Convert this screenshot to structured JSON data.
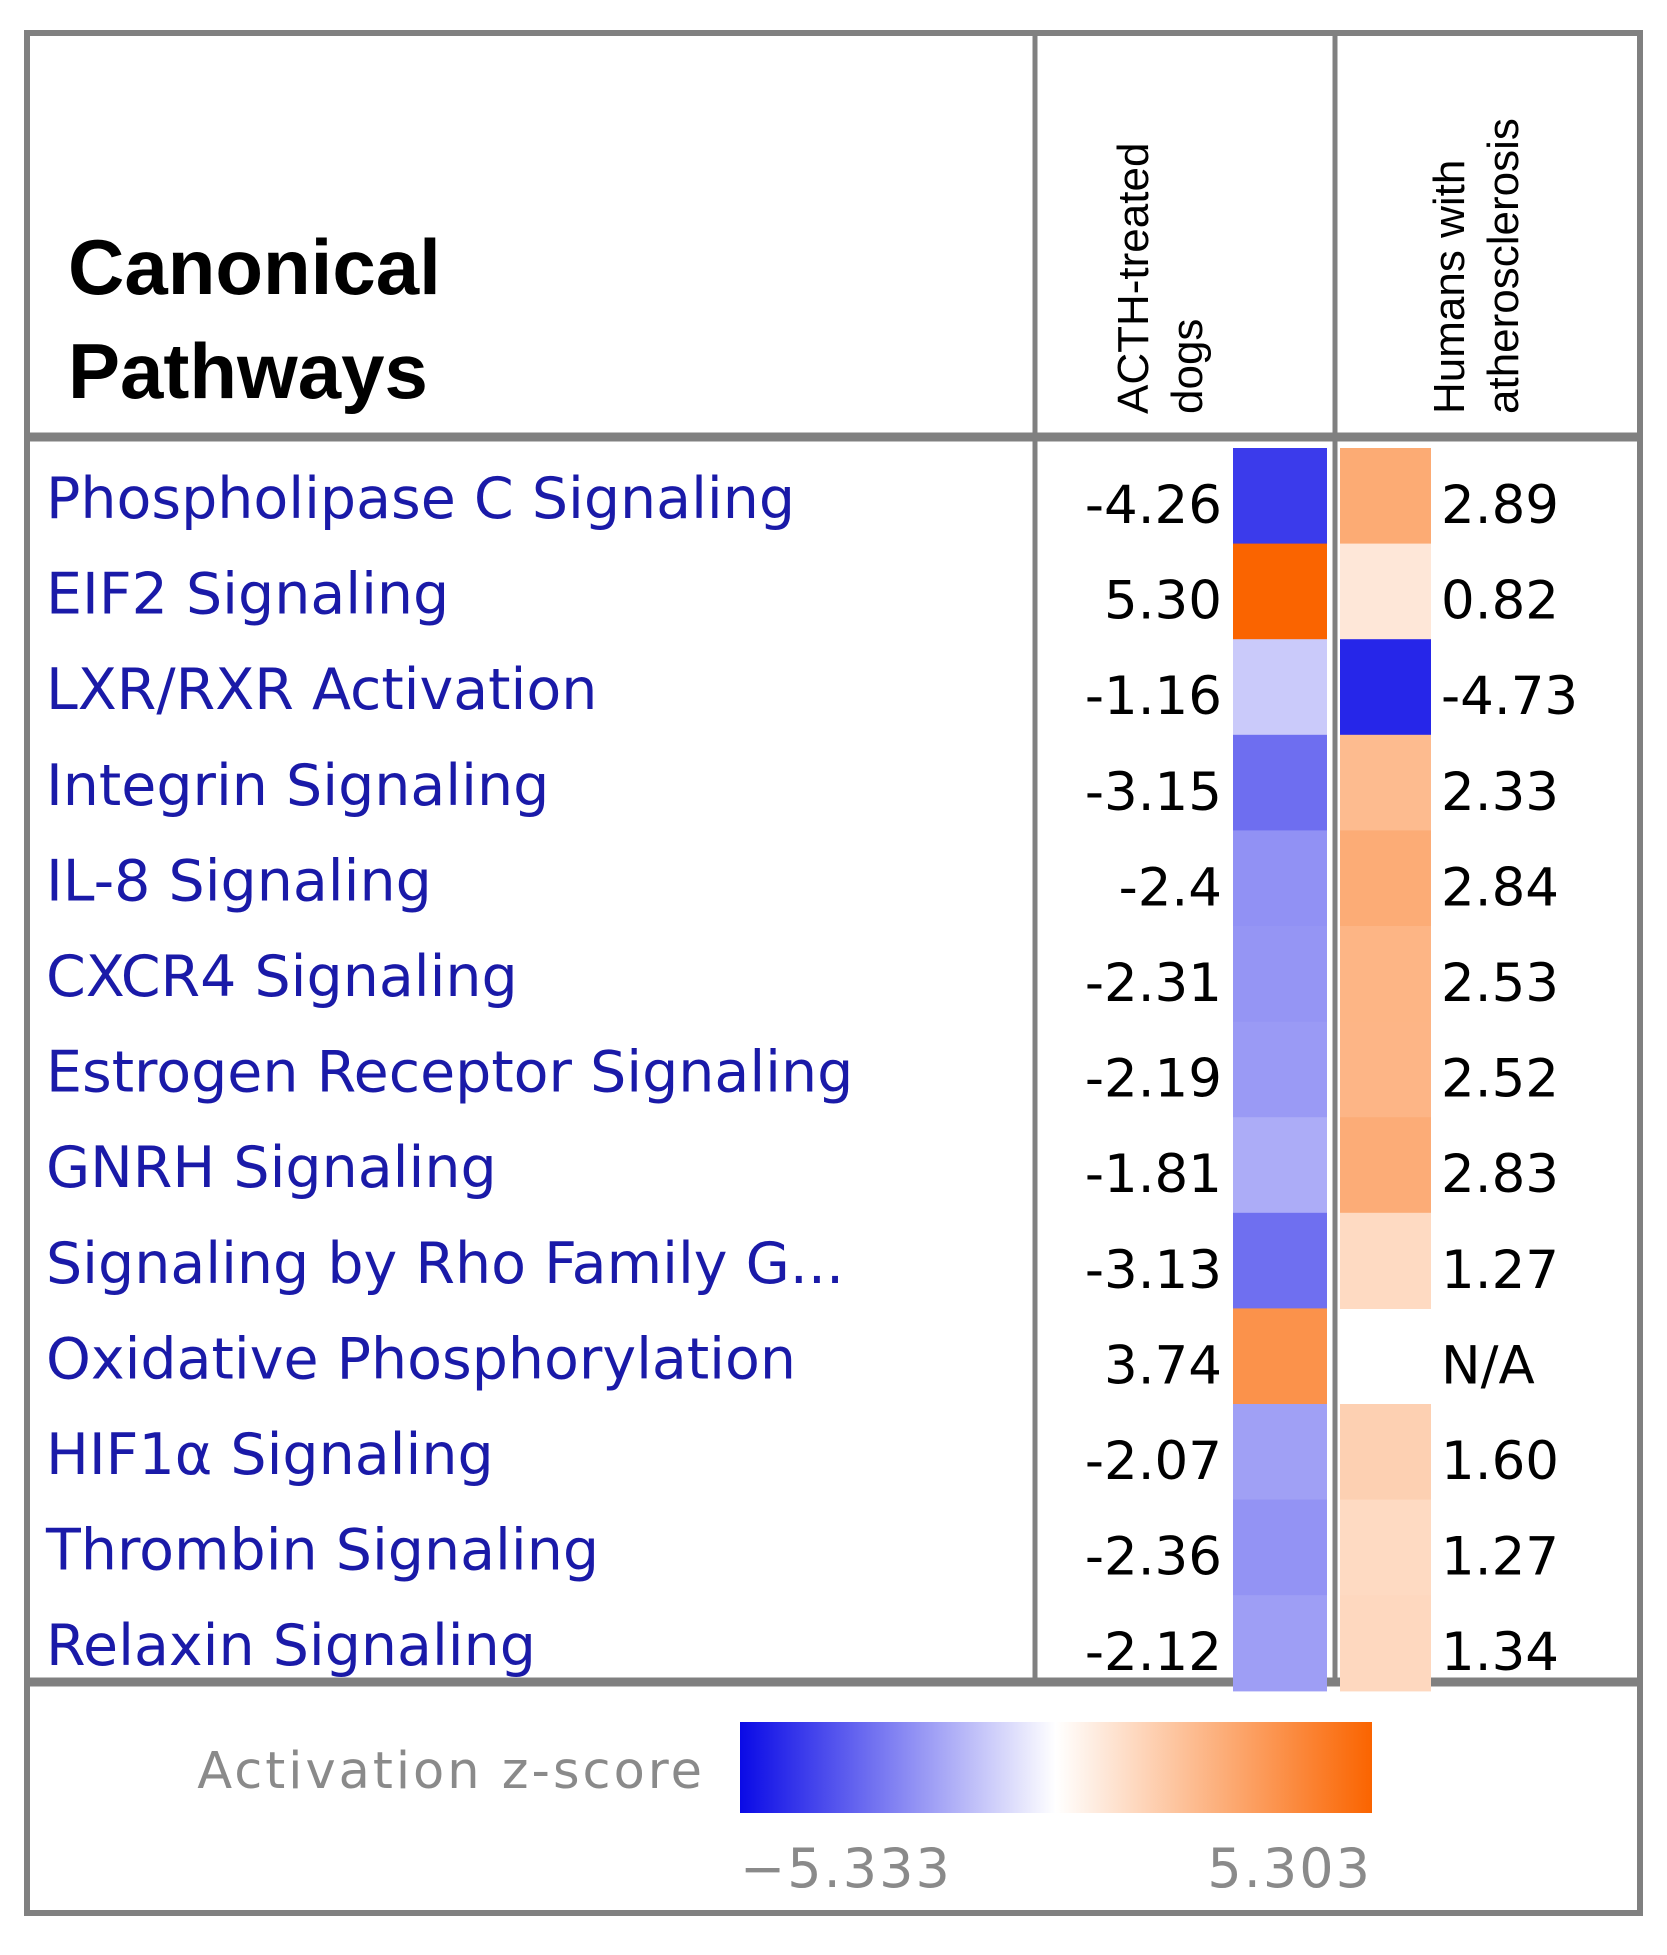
{
  "chart_data": {
    "type": "heatmap",
    "title": "Canonical Pathways",
    "title_lines": [
      "Canonical",
      "Pathways"
    ],
    "columns": [
      {
        "name": "ACTH-treated dogs",
        "lines": [
          "ACTH-treated",
          "dogs"
        ]
      },
      {
        "name": "Humans with atherosclerosis",
        "lines": [
          "Humans with",
          "atherosclerosis"
        ]
      }
    ],
    "rows": [
      "Phospholipase C Signaling",
      "EIF2 Signaling",
      "LXR/RXR Activation",
      "Integrin Signaling",
      "IL-8 Signaling",
      "CXCR4 Signaling",
      "Estrogen Receptor Signaling",
      "GNRH Signaling",
      "Signaling by Rho Family G...",
      "Oxidative Phosphorylation",
      "HIF1α Signaling",
      "Thrombin Signaling",
      "Relaxin Signaling"
    ],
    "values": [
      [
        -4.26,
        2.89
      ],
      [
        5.3,
        0.82
      ],
      [
        -1.16,
        -4.73
      ],
      [
        -3.15,
        2.33
      ],
      [
        -2.4,
        2.84
      ],
      [
        -2.31,
        2.53
      ],
      [
        -2.19,
        2.52
      ],
      [
        -1.81,
        2.83
      ],
      [
        -3.13,
        1.27
      ],
      [
        3.74,
        null
      ],
      [
        -2.07,
        1.6
      ],
      [
        -2.36,
        1.27
      ],
      [
        -2.12,
        1.34
      ]
    ],
    "value_labels": [
      [
        "-4.26",
        "2.89"
      ],
      [
        "5.30",
        "0.82"
      ],
      [
        "-1.16",
        "-4.73"
      ],
      [
        "-3.15",
        "2.33"
      ],
      [
        "-2.4",
        "2.84"
      ],
      [
        "-2.31",
        "2.53"
      ],
      [
        "-2.19",
        "2.52"
      ],
      [
        "-1.81",
        "2.83"
      ],
      [
        "-3.13",
        "1.27"
      ],
      [
        "3.74",
        "N/A"
      ],
      [
        "-2.07",
        "1.60"
      ],
      [
        "-2.36",
        "1.27"
      ],
      [
        "-2.12",
        "1.34"
      ]
    ],
    "colorbar": {
      "label": "Activation z-score",
      "min": -5.333,
      "max": 5.303,
      "min_label": "−5.333",
      "max_label": "5.303",
      "low_color": "#0a0ae6",
      "mid_color": "#ffffff",
      "high_color": "#fa6400"
    }
  }
}
